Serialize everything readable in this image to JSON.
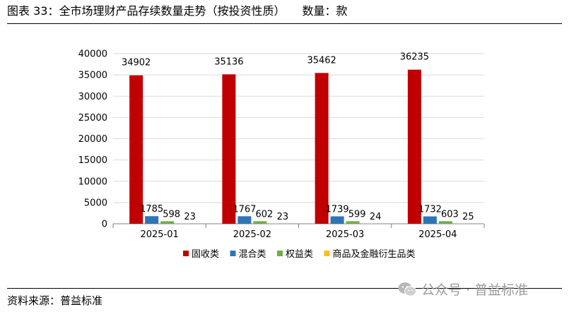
{
  "header": {
    "title": "图表 33：全市场理财产品存续数量走势（按投资性质）",
    "unit": "数量：款"
  },
  "footer": {
    "source": "资料来源：普益标准"
  },
  "watermark": {
    "text": "公众号 · 普益标准",
    "icon": "wechat-icon"
  },
  "chart_data": {
    "type": "bar",
    "categories": [
      "2025-01",
      "2025-02",
      "2025-03",
      "2025-04"
    ],
    "series": [
      {
        "name": "固收类",
        "color": "#C00000",
        "values": [
          34902,
          35136,
          35462,
          36235
        ]
      },
      {
        "name": "混合类",
        "color": "#2E75B6",
        "values": [
          1785,
          1767,
          1739,
          1732
        ]
      },
      {
        "name": "权益类",
        "color": "#70AD47",
        "values": [
          598,
          602,
          599,
          603
        ]
      },
      {
        "name": "商品及金融衍生品类",
        "color": "#FFC000",
        "values": [
          23,
          23,
          24,
          25
        ]
      }
    ],
    "ylim": [
      0,
      40000
    ],
    "yticks": [
      0,
      5000,
      10000,
      15000,
      20000,
      25000,
      30000,
      35000,
      40000
    ],
    "grid": true,
    "legend_position": "bottom",
    "data_labels": true
  }
}
